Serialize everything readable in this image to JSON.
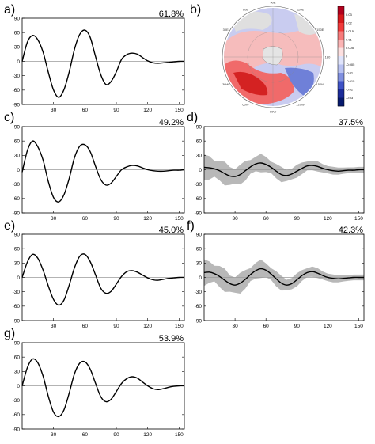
{
  "panels": [
    {
      "id": "a",
      "label": "a)",
      "percent": "61.8%",
      "amp": 75,
      "shade": false,
      "offset": 0
    },
    {
      "id": "c",
      "label": "c)",
      "percent": "49.2%",
      "amp": 68,
      "shade": false,
      "offset": 0
    },
    {
      "id": "d",
      "label": "d)",
      "percent": "37.5%",
      "amp": 16,
      "shade": true,
      "offset": 0.9
    },
    {
      "id": "e",
      "label": "e)",
      "percent": "45.0%",
      "amp": 58,
      "shade": false,
      "offset": 0
    },
    {
      "id": "f",
      "label": "f)",
      "percent": "42.3%",
      "amp": 18,
      "shade": true,
      "offset": 1.3
    },
    {
      "id": "g",
      "label": "g)",
      "percent": "53.9%",
      "amp": 64,
      "shade": false,
      "offset": 0
    }
  ],
  "map_panel": {
    "label": "b)",
    "lon_labels": [
      "30E",
      "60E",
      "90E",
      "120E",
      "150E",
      "180",
      "150W",
      "120W",
      "90W",
      "60W",
      "30W"
    ],
    "colorbar_ticks": [
      "0.03",
      "0.02",
      "0.015",
      "0.01",
      "0.005",
      "0",
      "-0.005",
      "-0.01",
      "-0.015",
      "-0.02",
      "-0.03"
    ],
    "colorbar_colors": [
      "#b2001d",
      "#d7191c",
      "#f03b3b",
      "#f77b7b",
      "#fbb4b4",
      "#fde0e0",
      "#e0e4fb",
      "#b9c2f2",
      "#8090e0",
      "#3e52c6",
      "#1c2c9a",
      "#071a6e"
    ]
  },
  "chart_data": [
    {
      "type": "line",
      "panel": "a",
      "x_range": [
        0,
        155
      ],
      "ylim": [
        -90,
        90
      ],
      "x_ticks": [
        "30",
        "60",
        "90",
        "120",
        "150"
      ],
      "y_ticks": [
        "90",
        "60",
        "30",
        "0",
        "-30",
        "-60",
        "-90"
      ],
      "series": [
        {
          "x": [
            0,
            5,
            10,
            15,
            20,
            25,
            30,
            35,
            40,
            45,
            50,
            55,
            60,
            65,
            70,
            75,
            80,
            85,
            90,
            95,
            100,
            105,
            110,
            115,
            120,
            125,
            130,
            135,
            140,
            145,
            150,
            155
          ],
          "y": [
            0,
            40,
            54,
            45,
            19,
            -23,
            -60,
            -75,
            -59,
            -22,
            25,
            56,
            65,
            50,
            11,
            -27,
            -48,
            -42,
            -22,
            4,
            14,
            17,
            15,
            8,
            1,
            -3,
            -4,
            -3,
            -2,
            -1,
            0,
            0
          ]
        }
      ]
    },
    {
      "type": "line",
      "panel": "c",
      "x_range": [
        0,
        155
      ],
      "ylim": [
        -90,
        90
      ],
      "x_ticks": [
        "30",
        "60",
        "90",
        "120",
        "150"
      ],
      "y_ticks": [
        "90",
        "60",
        "30",
        "0",
        "-30",
        "-60",
        "-90"
      ],
      "series": [
        {
          "x": [
            0,
            5,
            10,
            15,
            20,
            25,
            30,
            35,
            40,
            45,
            50,
            55,
            60,
            65,
            70,
            75,
            80,
            85,
            90,
            95,
            100,
            105,
            110,
            115,
            120,
            125,
            130,
            135,
            140,
            145,
            150,
            155
          ],
          "y": [
            -5,
            40,
            60,
            48,
            20,
            -25,
            -58,
            -67,
            -52,
            -18,
            25,
            49,
            52,
            38,
            8,
            -20,
            -32,
            -28,
            -14,
            0,
            6,
            9,
            8,
            4,
            0,
            -2,
            -3,
            -3,
            -2,
            -1,
            -1,
            0
          ]
        }
      ]
    },
    {
      "type": "line",
      "panel": "d",
      "x_range": [
        0,
        155
      ],
      "ylim": [
        -90,
        90
      ],
      "x_ticks": [
        "30",
        "60",
        "90",
        "120",
        "150"
      ],
      "y_ticks": [
        "90",
        "60",
        "30",
        "0",
        "-30",
        "-60",
        "-90"
      ],
      "series": [
        {
          "x": [
            0,
            5,
            10,
            15,
            20,
            25,
            30,
            35,
            40,
            45,
            50,
            55,
            60,
            65,
            70,
            75,
            80,
            85,
            90,
            95,
            100,
            105,
            110,
            115,
            120,
            125,
            130,
            135,
            140,
            145,
            150,
            155
          ],
          "y": [
            5,
            4,
            2,
            -2,
            -8,
            -13,
            -14,
            -10,
            -2,
            6,
            12,
            14,
            11,
            5,
            -3,
            -10,
            -12,
            -9,
            -3,
            3,
            8,
            9,
            7,
            3,
            0,
            -2,
            -3,
            -2,
            -1,
            -1,
            0,
            0
          ]
        }
      ]
    },
    {
      "type": "line",
      "panel": "e",
      "x_range": [
        0,
        155
      ],
      "ylim": [
        -90,
        90
      ],
      "x_ticks": [
        "30",
        "60",
        "90",
        "120",
        "150"
      ],
      "y_ticks": [
        "90",
        "60",
        "30",
        "0",
        "-30",
        "-60",
        "-90"
      ],
      "series": [
        {
          "x": [
            0,
            5,
            10,
            15,
            20,
            25,
            30,
            35,
            40,
            45,
            50,
            55,
            60,
            65,
            70,
            75,
            80,
            85,
            90,
            95,
            100,
            105,
            110,
            115,
            120,
            125,
            130,
            135,
            140,
            145,
            150,
            155
          ],
          "y": [
            0,
            32,
            48,
            40,
            15,
            -18,
            -46,
            -58,
            -47,
            -16,
            20,
            44,
            48,
            33,
            6,
            -22,
            -33,
            -29,
            -14,
            2,
            12,
            14,
            11,
            5,
            -1,
            -5,
            -6,
            -4,
            -2,
            -1,
            0,
            0
          ]
        }
      ]
    },
    {
      "type": "line",
      "panel": "f",
      "x_range": [
        0,
        155
      ],
      "ylim": [
        -90,
        90
      ],
      "x_ticks": [
        "30",
        "60",
        "90",
        "120",
        "150"
      ],
      "y_ticks": [
        "90",
        "60",
        "30",
        "0",
        "-30",
        "-60",
        "-90"
      ],
      "series": [
        {
          "x": [
            0,
            5,
            10,
            15,
            20,
            25,
            30,
            35,
            40,
            45,
            50,
            55,
            60,
            65,
            70,
            75,
            80,
            85,
            90,
            95,
            100,
            105,
            110,
            115,
            120,
            125,
            130,
            135,
            140,
            145,
            150,
            155
          ],
          "y": [
            10,
            11,
            8,
            2,
            -6,
            -13,
            -16,
            -12,
            -4,
            6,
            14,
            18,
            15,
            7,
            -3,
            -12,
            -16,
            -13,
            -5,
            4,
            10,
            12,
            9,
            4,
            0,
            -2,
            -3,
            -2,
            -1,
            0,
            0,
            0
          ]
        }
      ]
    },
    {
      "type": "line",
      "panel": "g",
      "x_range": [
        0,
        155
      ],
      "ylim": [
        -90,
        90
      ],
      "x_ticks": [
        "30",
        "60",
        "90",
        "120",
        "150"
      ],
      "y_ticks": [
        "90",
        "60",
        "30",
        "0",
        "-30",
        "-60",
        "-90"
      ],
      "series": [
        {
          "x": [
            0,
            5,
            10,
            15,
            20,
            25,
            30,
            35,
            40,
            45,
            50,
            55,
            60,
            65,
            70,
            75,
            80,
            85,
            90,
            95,
            100,
            105,
            110,
            115,
            120,
            125,
            130,
            135,
            140,
            145,
            150,
            155
          ],
          "y": [
            0,
            38,
            56,
            48,
            20,
            -22,
            -55,
            -64,
            -50,
            -15,
            25,
            47,
            50,
            35,
            6,
            -22,
            -33,
            -28,
            -12,
            5,
            15,
            19,
            16,
            8,
            0,
            -6,
            -8,
            -6,
            -3,
            -1,
            0,
            0
          ]
        }
      ]
    }
  ]
}
